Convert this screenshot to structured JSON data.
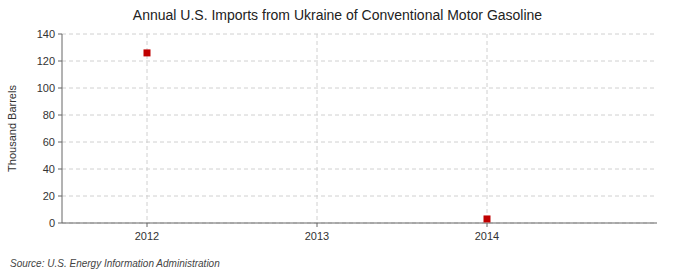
{
  "chart_data": {
    "type": "scatter",
    "title": "Annual U.S. Imports from Ukraine of Conventional Motor Gasoline",
    "y_label": "Thousand Barrels",
    "source": "Source: U.S. Energy Information Administration",
    "x": [
      2012,
      2014
    ],
    "values": [
      126,
      3
    ],
    "xlim": [
      2011.5,
      2015.0
    ],
    "ylim": [
      0,
      140
    ],
    "xticks": [
      2012,
      2013,
      2014
    ],
    "yticks": [
      0,
      20,
      40,
      60,
      80,
      100,
      120,
      140
    ],
    "color": "#c00000",
    "marker": "square",
    "grid": true
  }
}
